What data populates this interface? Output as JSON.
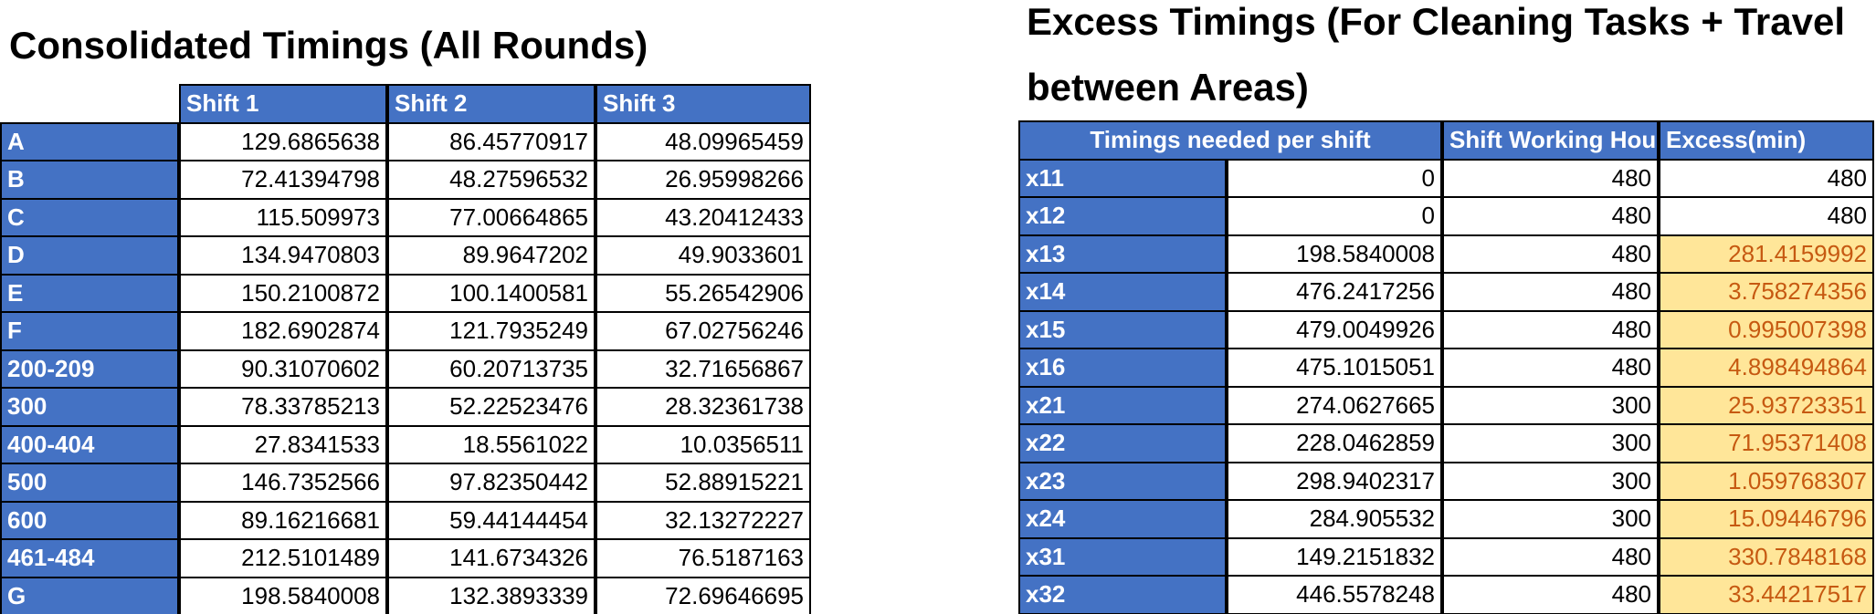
{
  "left_table": {
    "title": "Consolidated Timings (All Rounds)",
    "columns": [
      "Shift 1",
      "Shift 2",
      "Shift 3"
    ],
    "rows": [
      {
        "label": "A",
        "values": [
          "129.6865638",
          "86.45770917",
          "48.09965459"
        ]
      },
      {
        "label": "B",
        "values": [
          "72.41394798",
          "48.27596532",
          "26.95998266"
        ]
      },
      {
        "label": "C",
        "values": [
          "115.509973",
          "77.00664865",
          "43.20412433"
        ]
      },
      {
        "label": "D",
        "values": [
          "134.9470803",
          "89.9647202",
          "49.9033601"
        ]
      },
      {
        "label": "E",
        "values": [
          "150.2100872",
          "100.1400581",
          "55.26542906"
        ]
      },
      {
        "label": "F",
        "values": [
          "182.6902874",
          "121.7935249",
          "67.02756246"
        ]
      },
      {
        "label": "200-209",
        "values": [
          "90.31070602",
          "60.20713735",
          "32.71656867"
        ]
      },
      {
        "label": "300",
        "values": [
          "78.33785213",
          "52.22523476",
          "28.32361738"
        ]
      },
      {
        "label": "400-404",
        "values": [
          "27.8341533",
          "18.5561022",
          "10.0356511"
        ]
      },
      {
        "label": "500",
        "values": [
          "146.7352566",
          "97.82350442",
          "52.88915221"
        ]
      },
      {
        "label": "600",
        "values": [
          "89.16216681",
          "59.44144454",
          "32.13272227"
        ]
      },
      {
        "label": "461-484",
        "values": [
          "212.5101489",
          "141.6734326",
          "76.5187163"
        ]
      },
      {
        "label": "G",
        "values": [
          "198.5840008",
          "132.3893339",
          "72.69646695"
        ]
      }
    ]
  },
  "right_table": {
    "title": "Excess Timings (For Cleaning Tasks + Travel between Areas)",
    "columns": [
      "Timings needed per shift",
      "Shift Working Hours",
      "Excess(min)"
    ],
    "rows": [
      {
        "label": "x11",
        "values": [
          "0",
          "480",
          "480"
        ],
        "highlight": false
      },
      {
        "label": "x12",
        "values": [
          "0",
          "480",
          "480"
        ],
        "highlight": false
      },
      {
        "label": "x13",
        "values": [
          "198.5840008",
          "480",
          "281.4159992"
        ],
        "highlight": true
      },
      {
        "label": "x14",
        "values": [
          "476.2417256",
          "480",
          "3.758274356"
        ],
        "highlight": true
      },
      {
        "label": "x15",
        "values": [
          "479.0049926",
          "480",
          "0.995007398"
        ],
        "highlight": true
      },
      {
        "label": "x16",
        "values": [
          "475.1015051",
          "480",
          "4.898494864"
        ],
        "highlight": true
      },
      {
        "label": "x21",
        "values": [
          "274.0627665",
          "300",
          "25.93723351"
        ],
        "highlight": true
      },
      {
        "label": "x22",
        "values": [
          "228.0462859",
          "300",
          "71.95371408"
        ],
        "highlight": true
      },
      {
        "label": "x23",
        "values": [
          "298.9402317",
          "300",
          "1.059768307"
        ],
        "highlight": true
      },
      {
        "label": "x24",
        "values": [
          "284.905532",
          "300",
          "15.09446796"
        ],
        "highlight": true
      },
      {
        "label": "x31",
        "values": [
          "149.2151832",
          "480",
          "330.7848168"
        ],
        "highlight": true
      },
      {
        "label": "x32",
        "values": [
          "446.5578248",
          "480",
          "33.44217517"
        ],
        "highlight": true
      }
    ]
  }
}
